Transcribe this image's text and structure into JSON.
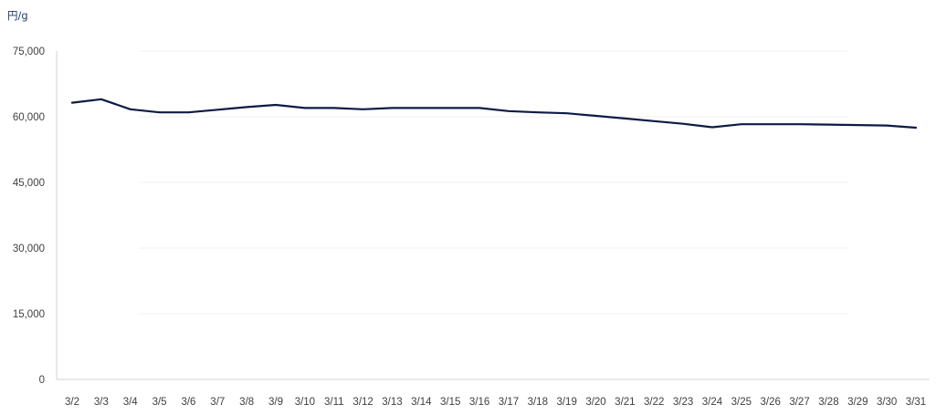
{
  "chart_data": {
    "type": "line",
    "ylabel": "円/g",
    "ylim": [
      0,
      75000
    ],
    "yticks": [
      "0",
      "15,000",
      "30,000",
      "45,000",
      "60,000",
      "75,000"
    ],
    "grid": true,
    "categories": [
      "3/2",
      "3/3",
      "3/4",
      "3/5",
      "3/6",
      "3/7",
      "3/8",
      "3/9",
      "3/10",
      "3/11",
      "3/12",
      "3/13",
      "3/14",
      "3/15",
      "3/16",
      "3/17",
      "3/18",
      "3/19",
      "3/20",
      "3/21",
      "3/22",
      "3/23",
      "3/24",
      "3/25",
      "3/26",
      "3/27",
      "3/28",
      "3/29",
      "3/30",
      "3/31"
    ],
    "series": [
      {
        "color": "#0d1a45",
        "values": [
          63200,
          64000,
          61700,
          61000,
          61000,
          61600,
          62200,
          62700,
          62000,
          62000,
          61700,
          62000,
          62000,
          62000,
          62000,
          61300,
          61000,
          60800,
          60200,
          59600,
          59000,
          58400,
          57600,
          58300,
          58300,
          58300,
          58200,
          58100,
          58000,
          57500
        ]
      }
    ]
  }
}
